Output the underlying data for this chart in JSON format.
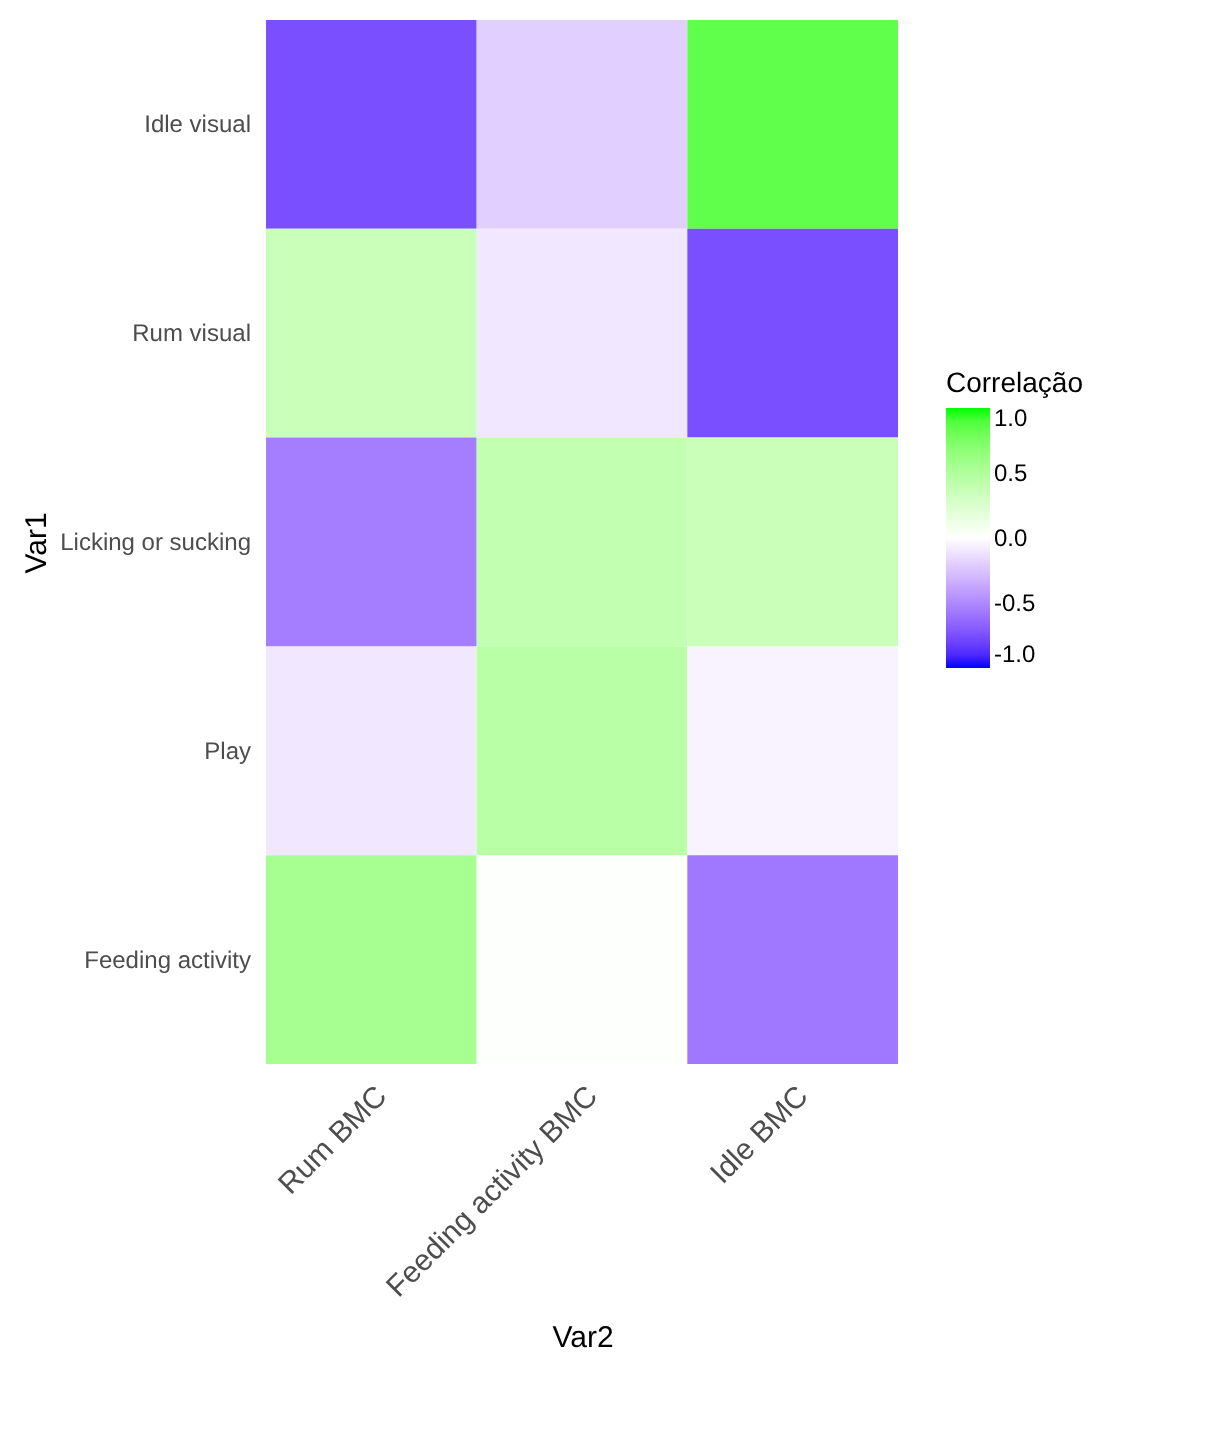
{
  "chart_data": {
    "type": "heatmap",
    "xlabel": "Var2",
    "ylabel": "Var1",
    "clabel": "Correlação",
    "categories": [
      "Rum BMC",
      "Feeding activity BMC",
      "Idle BMC"
    ],
    "y_categories": [
      "Idle visual",
      "Rum visual",
      "Licking or sucking",
      "Play",
      "Feeding activity"
    ],
    "cells": [
      [
        -0.75,
        -0.2,
        0.85
      ],
      [
        0.35,
        -0.1,
        -0.75
      ],
      [
        -0.55,
        0.4,
        0.35
      ],
      [
        -0.1,
        0.45,
        -0.05
      ],
      [
        0.55,
        0.02,
        -0.58
      ]
    ],
    "clim": [
      -1,
      1
    ],
    "cticks": [
      {
        "value": -1,
        "label": "-1.0"
      },
      {
        "value": -0.5,
        "label": "-0.5"
      },
      {
        "value": 0,
        "label": "0.0"
      },
      {
        "value": 0.5,
        "label": "0.5"
      },
      {
        "value": 1,
        "label": "1.0"
      }
    ],
    "colors": [
      "#0000ff",
      "#ffffff",
      "#00ff00"
    ]
  }
}
